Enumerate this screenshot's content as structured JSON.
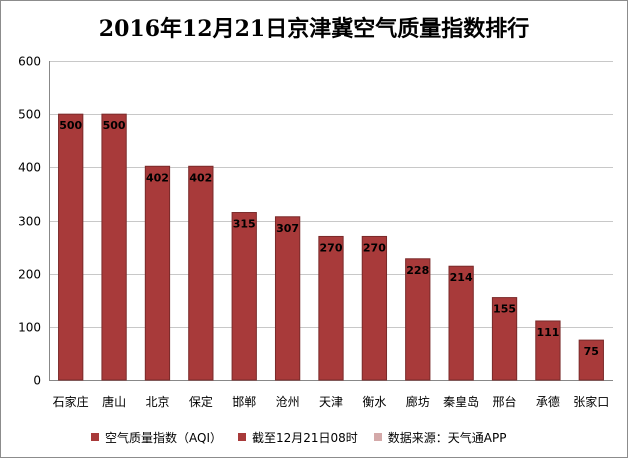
{
  "chart_data": {
    "type": "bar",
    "title": "2016年12月21日京津冀空气质量指数排行",
    "categories": [
      "石家庄",
      "唐山",
      "北京",
      "保定",
      "邯郸",
      "沧州",
      "天津",
      "衡水",
      "廊坊",
      "秦皇岛",
      "邢台",
      "承德",
      "张家口"
    ],
    "values": [
      500,
      500,
      402,
      402,
      315,
      307,
      270,
      270,
      228,
      214,
      155,
      111,
      75
    ],
    "ylim": [
      0,
      600
    ],
    "yticks": [
      0,
      100,
      200,
      300,
      400,
      500,
      600
    ],
    "grid": true,
    "legend_position": "bottom",
    "legend": [
      {
        "label": "空气质量指数（AQI）",
        "color": "#a83a3a"
      },
      {
        "label": "截至12月21日08时",
        "color": "#a83a3a"
      },
      {
        "label": "数据来源：天气通APP",
        "color": "#d4a9a9"
      }
    ],
    "bar_color": "#a83a3a",
    "bar_edge_color": "#7a2a2a"
  }
}
